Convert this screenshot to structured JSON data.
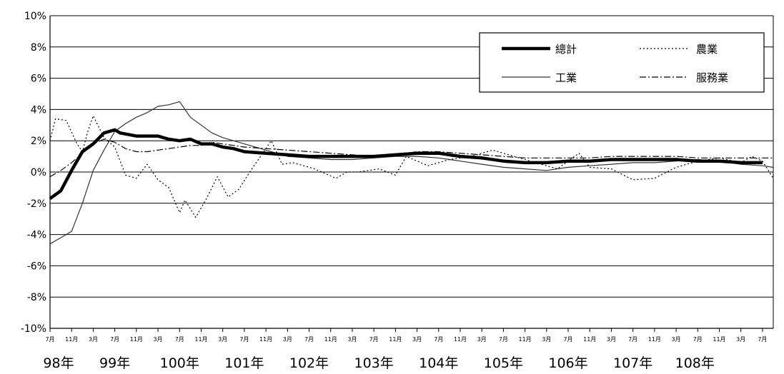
{
  "chart_data": {
    "type": "line",
    "title": "",
    "xlabel": "",
    "ylabel": "",
    "ylim": [
      -10,
      10
    ],
    "y_ticks": [
      10,
      8,
      6,
      4,
      2,
      0,
      -2,
      -4,
      -6,
      -8,
      -10
    ],
    "y_tick_labels": [
      "10%",
      "8%",
      "6%",
      "4%",
      "2%",
      "0%",
      "-2%",
      "-4%",
      "-6%",
      "-8%",
      "-10%"
    ],
    "grid": true,
    "legend_position": "top-right",
    "month_tick_labels": [
      "7月",
      "11月",
      "3月",
      "7月",
      "11月",
      "3月",
      "7月",
      "11月",
      "3月",
      "7月",
      "11月",
      "3月",
      "7月",
      "11月",
      "3月",
      "7月",
      "11月",
      "3月",
      "7月",
      "11月",
      "3月",
      "7月",
      "11月",
      "3月",
      "7月",
      "11月",
      "3月",
      "7月",
      "11月",
      "3月",
      "7月",
      "11月",
      "3月",
      "7月"
    ],
    "year_labels": [
      "98年",
      "99年",
      "100年",
      "101年",
      "102年",
      "103年",
      "104年",
      "105年",
      "106年",
      "107年",
      "108年"
    ],
    "series": [
      {
        "name": "總計",
        "style": "thick-solid",
        "color": "#000000",
        "points": [
          [
            0,
            -1.7
          ],
          [
            2,
            -1.2
          ],
          [
            4,
            0.1
          ],
          [
            6,
            1.3
          ],
          [
            8,
            1.8
          ],
          [
            10,
            2.5
          ],
          [
            12,
            2.7
          ],
          [
            13,
            2.5
          ],
          [
            16,
            2.3
          ],
          [
            18,
            2.3
          ],
          [
            20,
            2.3
          ],
          [
            22,
            2.1
          ],
          [
            24,
            2.0
          ],
          [
            26,
            2.1
          ],
          [
            28,
            1.8
          ],
          [
            30,
            1.8
          ],
          [
            32,
            1.6
          ],
          [
            34,
            1.5
          ],
          [
            36,
            1.3
          ],
          [
            40,
            1.2
          ],
          [
            44,
            1.1
          ],
          [
            48,
            1.0
          ],
          [
            52,
            1.0
          ],
          [
            56,
            1.0
          ],
          [
            60,
            1.0
          ],
          [
            64,
            1.1
          ],
          [
            68,
            1.2
          ],
          [
            72,
            1.2
          ],
          [
            76,
            1.0
          ],
          [
            80,
            0.9
          ],
          [
            84,
            0.7
          ],
          [
            88,
            0.6
          ],
          [
            92,
            0.6
          ],
          [
            96,
            0.7
          ],
          [
            100,
            0.7
          ],
          [
            104,
            0.8
          ],
          [
            108,
            0.8
          ],
          [
            112,
            0.8
          ],
          [
            116,
            0.8
          ],
          [
            120,
            0.7
          ],
          [
            124,
            0.7
          ],
          [
            128,
            0.6
          ],
          [
            132,
            0.6
          ]
        ]
      },
      {
        "name": "農業",
        "style": "dotted",
        "color": "#000000",
        "points": [
          [
            0,
            2.0
          ],
          [
            1,
            3.4
          ],
          [
            3,
            3.3
          ],
          [
            5,
            1.8
          ],
          [
            6,
            1.3
          ],
          [
            7,
            2.6
          ],
          [
            8,
            3.6
          ],
          [
            10,
            2.2
          ],
          [
            12,
            1.6
          ],
          [
            14,
            -0.2
          ],
          [
            16,
            -0.4
          ],
          [
            18,
            0.5
          ],
          [
            20,
            -0.5
          ],
          [
            22,
            -1.0
          ],
          [
            24,
            -2.6
          ],
          [
            25,
            -1.8
          ],
          [
            27,
            -2.9
          ],
          [
            29,
            -1.7
          ],
          [
            31,
            -0.3
          ],
          [
            33,
            -1.6
          ],
          [
            35,
            -1.1
          ],
          [
            37,
            0.0
          ],
          [
            39,
            1.0
          ],
          [
            41,
            2.0
          ],
          [
            43,
            0.5
          ],
          [
            45,
            0.6
          ],
          [
            49,
            0.2
          ],
          [
            53,
            -0.4
          ],
          [
            55,
            0.0
          ],
          [
            57,
            0.0
          ],
          [
            61,
            0.2
          ],
          [
            64,
            -0.2
          ],
          [
            66,
            1.0
          ],
          [
            70,
            0.4
          ],
          [
            74,
            0.8
          ],
          [
            78,
            1.0
          ],
          [
            82,
            1.4
          ],
          [
            86,
            1.0
          ],
          [
            90,
            0.6
          ],
          [
            94,
            0.2
          ],
          [
            98,
            1.2
          ],
          [
            100,
            0.3
          ],
          [
            104,
            0.2
          ],
          [
            108,
            -0.5
          ],
          [
            112,
            -0.4
          ],
          [
            116,
            0.3
          ],
          [
            120,
            0.7
          ],
          [
            124,
            0.9
          ],
          [
            128,
            0.6
          ],
          [
            130,
            1.0
          ],
          [
            132,
            0.7
          ],
          [
            134,
            -0.4
          ]
        ]
      },
      {
        "name": "工業",
        "style": "thin-solid",
        "color": "#333333",
        "points": [
          [
            0,
            -4.6
          ],
          [
            2,
            -4.2
          ],
          [
            4,
            -3.8
          ],
          [
            6,
            -2.0
          ],
          [
            8,
            0.1
          ],
          [
            10,
            1.4
          ],
          [
            12,
            2.6
          ],
          [
            14,
            3.1
          ],
          [
            16,
            3.5
          ],
          [
            18,
            3.8
          ],
          [
            20,
            4.2
          ],
          [
            22,
            4.3
          ],
          [
            24,
            4.5
          ],
          [
            26,
            3.5
          ],
          [
            28,
            3.0
          ],
          [
            30,
            2.5
          ],
          [
            32,
            2.2
          ],
          [
            34,
            2.0
          ],
          [
            36,
            1.8
          ],
          [
            40,
            1.4
          ],
          [
            44,
            1.0
          ],
          [
            48,
            0.9
          ],
          [
            52,
            0.8
          ],
          [
            56,
            0.8
          ],
          [
            60,
            0.9
          ],
          [
            64,
            1.0
          ],
          [
            68,
            1.0
          ],
          [
            72,
            0.9
          ],
          [
            76,
            0.7
          ],
          [
            80,
            0.5
          ],
          [
            84,
            0.3
          ],
          [
            88,
            0.2
          ],
          [
            92,
            0.1
          ],
          [
            96,
            0.3
          ],
          [
            100,
            0.4
          ],
          [
            104,
            0.5
          ],
          [
            108,
            0.6
          ],
          [
            112,
            0.6
          ],
          [
            116,
            0.7
          ],
          [
            120,
            0.8
          ],
          [
            124,
            0.7
          ],
          [
            128,
            0.5
          ],
          [
            132,
            0.4
          ],
          [
            134,
            0.3
          ]
        ]
      },
      {
        "name": "服務業",
        "style": "dash-dot",
        "color": "#000000",
        "points": [
          [
            0,
            -0.3
          ],
          [
            2,
            0.1
          ],
          [
            4,
            0.6
          ],
          [
            6,
            1.2
          ],
          [
            8,
            1.8
          ],
          [
            10,
            2.1
          ],
          [
            12,
            1.9
          ],
          [
            14,
            1.5
          ],
          [
            16,
            1.3
          ],
          [
            18,
            1.3
          ],
          [
            20,
            1.4
          ],
          [
            22,
            1.5
          ],
          [
            24,
            1.6
          ],
          [
            26,
            1.7
          ],
          [
            28,
            1.7
          ],
          [
            30,
            1.9
          ],
          [
            32,
            1.8
          ],
          [
            34,
            1.7
          ],
          [
            36,
            1.6
          ],
          [
            40,
            1.5
          ],
          [
            44,
            1.4
          ],
          [
            48,
            1.3
          ],
          [
            52,
            1.2
          ],
          [
            56,
            1.1
          ],
          [
            60,
            1.0
          ],
          [
            64,
            1.1
          ],
          [
            68,
            1.3
          ],
          [
            72,
            1.3
          ],
          [
            76,
            1.2
          ],
          [
            80,
            1.1
          ],
          [
            84,
            1.0
          ],
          [
            88,
            0.9
          ],
          [
            92,
            0.9
          ],
          [
            96,
            0.9
          ],
          [
            100,
            0.9
          ],
          [
            104,
            1.0
          ],
          [
            108,
            1.0
          ],
          [
            112,
            1.0
          ],
          [
            116,
            1.0
          ],
          [
            120,
            0.9
          ],
          [
            124,
            0.9
          ],
          [
            128,
            0.9
          ],
          [
            132,
            0.9
          ],
          [
            134,
            0.9
          ]
        ]
      }
    ]
  }
}
